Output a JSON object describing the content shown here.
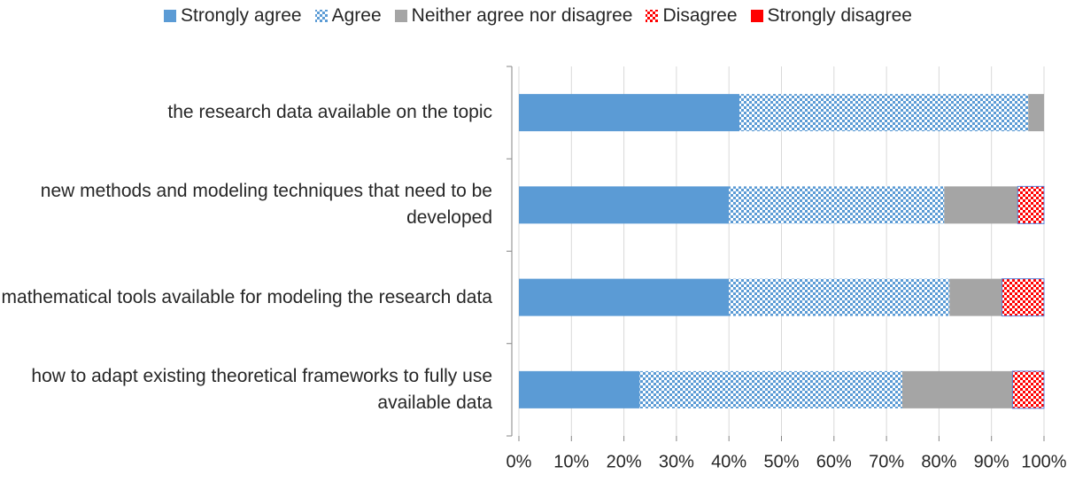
{
  "chart_data": {
    "type": "stacked_barh",
    "categories": [
      "the research data available on the topic",
      "new methods and modeling techniques that need to be developed",
      "mathematical tools available for modeling the research data",
      "how to adapt existing theoretical frameworks to fully use available data"
    ],
    "series": [
      {
        "name": "Strongly agree",
        "color": "#5b9bd5",
        "pattern": "solid",
        "values": [
          42,
          40,
          40,
          23
        ]
      },
      {
        "name": "Agree",
        "color": "#5b9bd5",
        "pattern": "checker",
        "values": [
          55,
          41,
          42,
          50
        ]
      },
      {
        "name": "Neither agree nor disagree",
        "color": "#a5a5a5",
        "pattern": "solid",
        "values": [
          3,
          14,
          10,
          21
        ]
      },
      {
        "name": "Disagree",
        "color": "#ff0000",
        "pattern": "checker",
        "values": [
          0,
          5,
          8,
          6
        ]
      },
      {
        "name": "Strongly disagree",
        "color": "#ff0000",
        "pattern": "solid",
        "values": [
          0,
          0,
          0,
          0
        ]
      }
    ],
    "xlim": [
      0,
      100
    ],
    "xticks": [
      {
        "value": 0,
        "label": "0%"
      },
      {
        "value": 10,
        "label": "10%"
      },
      {
        "value": 20,
        "label": "20%"
      },
      {
        "value": 30,
        "label": "30%"
      },
      {
        "value": 40,
        "label": "40%"
      },
      {
        "value": 50,
        "label": "50%"
      },
      {
        "value": 60,
        "label": "60%"
      },
      {
        "value": 70,
        "label": "70%"
      },
      {
        "value": 80,
        "label": "80%"
      },
      {
        "value": 90,
        "label": "90%"
      },
      {
        "value": 100,
        "label": "100%"
      }
    ],
    "grid": true,
    "legend": "top"
  }
}
